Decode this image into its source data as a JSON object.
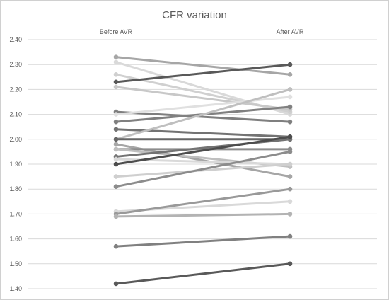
{
  "chart_data": {
    "type": "line",
    "title": "CFR variation",
    "categories": [
      "Before AVR",
      "After AVR"
    ],
    "ylim": [
      1.4,
      2.4
    ],
    "ytick_labels": [
      "1.40",
      "1.50",
      "1.60",
      "1.70",
      "1.80",
      "1.90",
      "2.00",
      "2.10",
      "2.20",
      "2.30",
      "2.40"
    ],
    "grid": true,
    "legend": "none",
    "series": [
      {
        "values": [
          2.33,
          2.26
        ],
        "color": "#a6a6a6"
      },
      {
        "values": [
          2.31,
          2.1
        ],
        "color": "#d9d9d9"
      },
      {
        "values": [
          2.26,
          2.11
        ],
        "color": "#d0d0d0"
      },
      {
        "values": [
          2.23,
          2.3
        ],
        "color": "#595959"
      },
      {
        "values": [
          2.21,
          2.12
        ],
        "color": "#c8c8c8"
      },
      {
        "values": [
          2.11,
          2.07
        ],
        "color": "#7f7f7f"
      },
      {
        "values": [
          2.1,
          2.17
        ],
        "color": "#e0e0e0"
      },
      {
        "values": [
          2.07,
          2.13
        ],
        "color": "#808080"
      },
      {
        "values": [
          2.04,
          2.01
        ],
        "color": "#737373"
      },
      {
        "values": [
          2.0,
          2.2
        ],
        "color": "#bfbfbf"
      },
      {
        "values": [
          2.0,
          2.0
        ],
        "color": "#666666"
      },
      {
        "values": [
          1.98,
          1.85
        ],
        "color": "#a6a6a6"
      },
      {
        "values": [
          1.96,
          1.96
        ],
        "color": "#8c8c8c"
      },
      {
        "values": [
          1.96,
          1.89
        ],
        "color": "#bfbfbf"
      },
      {
        "values": [
          1.93,
          2.0
        ],
        "color": "#737373"
      },
      {
        "values": [
          1.92,
          1.9
        ],
        "color": "#d9d9d9"
      },
      {
        "values": [
          1.9,
          2.01
        ],
        "color": "#4d4d4d"
      },
      {
        "values": [
          1.85,
          1.9
        ],
        "color": "#cfcfcf"
      },
      {
        "values": [
          1.81,
          1.95
        ],
        "color": "#8c8c8c"
      },
      {
        "values": [
          1.71,
          1.75
        ],
        "color": "#d9d9d9"
      },
      {
        "values": [
          1.7,
          1.8
        ],
        "color": "#999999"
      },
      {
        "values": [
          1.69,
          1.7
        ],
        "color": "#b3b3b3"
      },
      {
        "values": [
          1.57,
          1.61
        ],
        "color": "#808080"
      },
      {
        "values": [
          1.42,
          1.5
        ],
        "color": "#595959"
      }
    ]
  }
}
